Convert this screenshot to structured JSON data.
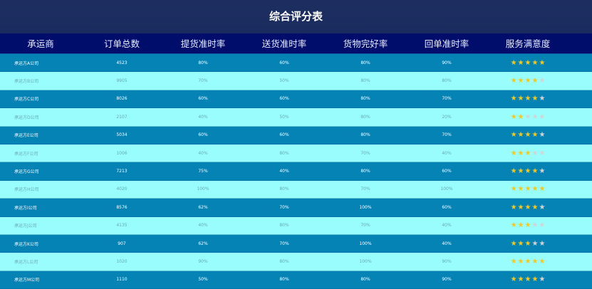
{
  "title": "综合评分表",
  "headers": [
    "承运商",
    "订单总数",
    "提货准时率",
    "送货准时率",
    "货物完好率",
    "回单准时率",
    "服务满意度"
  ],
  "colors": {
    "title_bg": "#1a2b5e",
    "header_bg": "#000d6b",
    "row_dark": "#0583b5",
    "row_light": "#99fdfd",
    "star_on": "#f7c81a",
    "star_off": "#d4d4d4"
  },
  "rows": [
    {
      "name": "承运方A公司",
      "orders": "4523",
      "pickup": "80%",
      "delivery": "60%",
      "intact": "80%",
      "receipt": "90%",
      "stars": 5
    },
    {
      "name": "承运方B公司",
      "orders": "9905",
      "pickup": "70%",
      "delivery": "50%",
      "intact": "80%",
      "receipt": "80%",
      "stars": 4
    },
    {
      "name": "承运方C公司",
      "orders": "8026",
      "pickup": "60%",
      "delivery": "60%",
      "intact": "80%",
      "receipt": "70%",
      "stars": 4
    },
    {
      "name": "承运方D公司",
      "orders": "2107",
      "pickup": "40%",
      "delivery": "50%",
      "intact": "80%",
      "receipt": "20%",
      "stars": 2
    },
    {
      "name": "承运方E公司",
      "orders": "5034",
      "pickup": "60%",
      "delivery": "60%",
      "intact": "80%",
      "receipt": "70%",
      "stars": 4
    },
    {
      "name": "承运方F公司",
      "orders": "1006",
      "pickup": "40%",
      "delivery": "80%",
      "intact": "70%",
      "receipt": "40%",
      "stars": 3
    },
    {
      "name": "承运方G公司",
      "orders": "7213",
      "pickup": "75%",
      "delivery": "40%",
      "intact": "80%",
      "receipt": "60%",
      "stars": 4
    },
    {
      "name": "承运方H公司",
      "orders": "4020",
      "pickup": "100%",
      "delivery": "80%",
      "intact": "70%",
      "receipt": "100%",
      "stars": 5
    },
    {
      "name": "承运方I公司",
      "orders": "8576",
      "pickup": "62%",
      "delivery": "70%",
      "intact": "100%",
      "receipt": "60%",
      "stars": 4
    },
    {
      "name": "承运方J公司",
      "orders": "4135",
      "pickup": "40%",
      "delivery": "80%",
      "intact": "70%",
      "receipt": "40%",
      "stars": 3
    },
    {
      "name": "承运方K公司",
      "orders": "907",
      "pickup": "62%",
      "delivery": "70%",
      "intact": "100%",
      "receipt": "40%",
      "stars": 3
    },
    {
      "name": "承运方L公司",
      "orders": "1020",
      "pickup": "90%",
      "delivery": "80%",
      "intact": "100%",
      "receipt": "90%",
      "stars": 5
    },
    {
      "name": "承运方M公司",
      "orders": "1110",
      "pickup": "50%",
      "delivery": "80%",
      "intact": "80%",
      "receipt": "90%",
      "stars": 4
    }
  ]
}
